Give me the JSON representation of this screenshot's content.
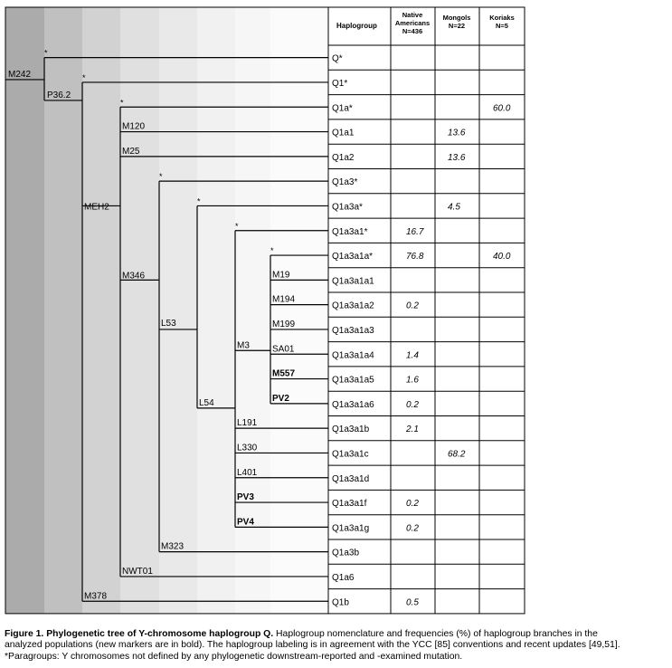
{
  "table": {
    "headers": {
      "haplogroup": "Haplogroup",
      "native": [
        "Native",
        "Americans",
        "N=436"
      ],
      "mongols": [
        "Mongols",
        "N=22"
      ],
      "koriaks": [
        "Koriaks",
        "N=5"
      ]
    },
    "rows": [
      {
        "haplogroup": "Q*",
        "native": "",
        "mongols": "",
        "koriaks": ""
      },
      {
        "haplogroup": "Q1*",
        "native": "",
        "mongols": "",
        "koriaks": ""
      },
      {
        "haplogroup": "Q1a*",
        "native": "",
        "mongols": "",
        "koriaks": "60.0"
      },
      {
        "haplogroup": "Q1a1",
        "native": "",
        "mongols": "13.6",
        "koriaks": ""
      },
      {
        "haplogroup": "Q1a2",
        "native": "",
        "mongols": "13.6",
        "koriaks": ""
      },
      {
        "haplogroup": "Q1a3*",
        "native": "",
        "mongols": "",
        "koriaks": ""
      },
      {
        "haplogroup": "Q1a3a*",
        "native": "",
        "mongols": "4.5",
        "koriaks": ""
      },
      {
        "haplogroup": "Q1a3a1*",
        "native": "16.7",
        "mongols": "",
        "koriaks": ""
      },
      {
        "haplogroup": "Q1a3a1a*",
        "native": "76.8",
        "mongols": "",
        "koriaks": "40.0"
      },
      {
        "haplogroup": "Q1a3a1a1",
        "native": "",
        "mongols": "",
        "koriaks": ""
      },
      {
        "haplogroup": "Q1a3a1a2",
        "native": "0.2",
        "mongols": "",
        "koriaks": ""
      },
      {
        "haplogroup": "Q1a3a1a3",
        "native": "",
        "mongols": "",
        "koriaks": ""
      },
      {
        "haplogroup": "Q1a3a1a4",
        "native": "1.4",
        "mongols": "",
        "koriaks": ""
      },
      {
        "haplogroup": "Q1a3a1a5",
        "native": "1.6",
        "mongols": "",
        "koriaks": ""
      },
      {
        "haplogroup": "Q1a3a1a6",
        "native": "0.2",
        "mongols": "",
        "koriaks": ""
      },
      {
        "haplogroup": "Q1a3a1b",
        "native": "2.1",
        "mongols": "",
        "koriaks": ""
      },
      {
        "haplogroup": "Q1a3a1c",
        "native": "",
        "mongols": "68.2",
        "koriaks": ""
      },
      {
        "haplogroup": "Q1a3a1d",
        "native": "",
        "mongols": "",
        "koriaks": ""
      },
      {
        "haplogroup": "Q1a3a1f",
        "native": "0.2",
        "mongols": "",
        "koriaks": ""
      },
      {
        "haplogroup": "Q1a3a1g",
        "native": "0.2",
        "mongols": "",
        "koriaks": ""
      },
      {
        "haplogroup": "Q1a3b",
        "native": "",
        "mongols": "",
        "koriaks": ""
      },
      {
        "haplogroup": "Q1a6",
        "native": "",
        "mongols": "",
        "koriaks": ""
      },
      {
        "haplogroup": "Q1b",
        "native": "0.5",
        "mongols": "",
        "koriaks": ""
      }
    ]
  },
  "tree": {
    "markers": [
      {
        "label": "M242",
        "bold": false
      },
      {
        "label": "P36.2",
        "bold": false
      },
      {
        "label": "MEH2",
        "bold": false
      },
      {
        "label": "M120",
        "bold": false
      },
      {
        "label": "M25",
        "bold": false
      },
      {
        "label": "M346",
        "bold": false
      },
      {
        "label": "L53",
        "bold": false
      },
      {
        "label": "L54",
        "bold": false
      },
      {
        "label": "M3",
        "bold": false
      },
      {
        "label": "M19",
        "bold": false
      },
      {
        "label": "M194",
        "bold": false
      },
      {
        "label": "M199",
        "bold": false
      },
      {
        "label": "SA01",
        "bold": false
      },
      {
        "label": "M557",
        "bold": true
      },
      {
        "label": "PV2",
        "bold": true
      },
      {
        "label": "L191",
        "bold": false
      },
      {
        "label": "L330",
        "bold": false
      },
      {
        "label": "L401",
        "bold": false
      },
      {
        "label": "PV3",
        "bold": true
      },
      {
        "label": "PV4",
        "bold": true
      },
      {
        "label": "M323",
        "bold": false
      },
      {
        "label": "NWT01",
        "bold": false
      },
      {
        "label": "M378",
        "bold": false
      }
    ],
    "paragroup_marker": "*"
  },
  "caption": {
    "title": "Figure 1. Phylogenetic tree of Y-chromosome haplogroup Q.",
    "line1_rest": " Haplogroup nomenclature and frequencies (%) of haplogroup branches in the",
    "line2": "analyzed populations (new markers are in bold). The haplogroup labeling is in agreement with the YCC [85] conventions and recent updates [49,51].",
    "line3": "*Paragroups: Y chromosomes not defined by any phylogenetic downstream-reported and -examined mutation."
  }
}
